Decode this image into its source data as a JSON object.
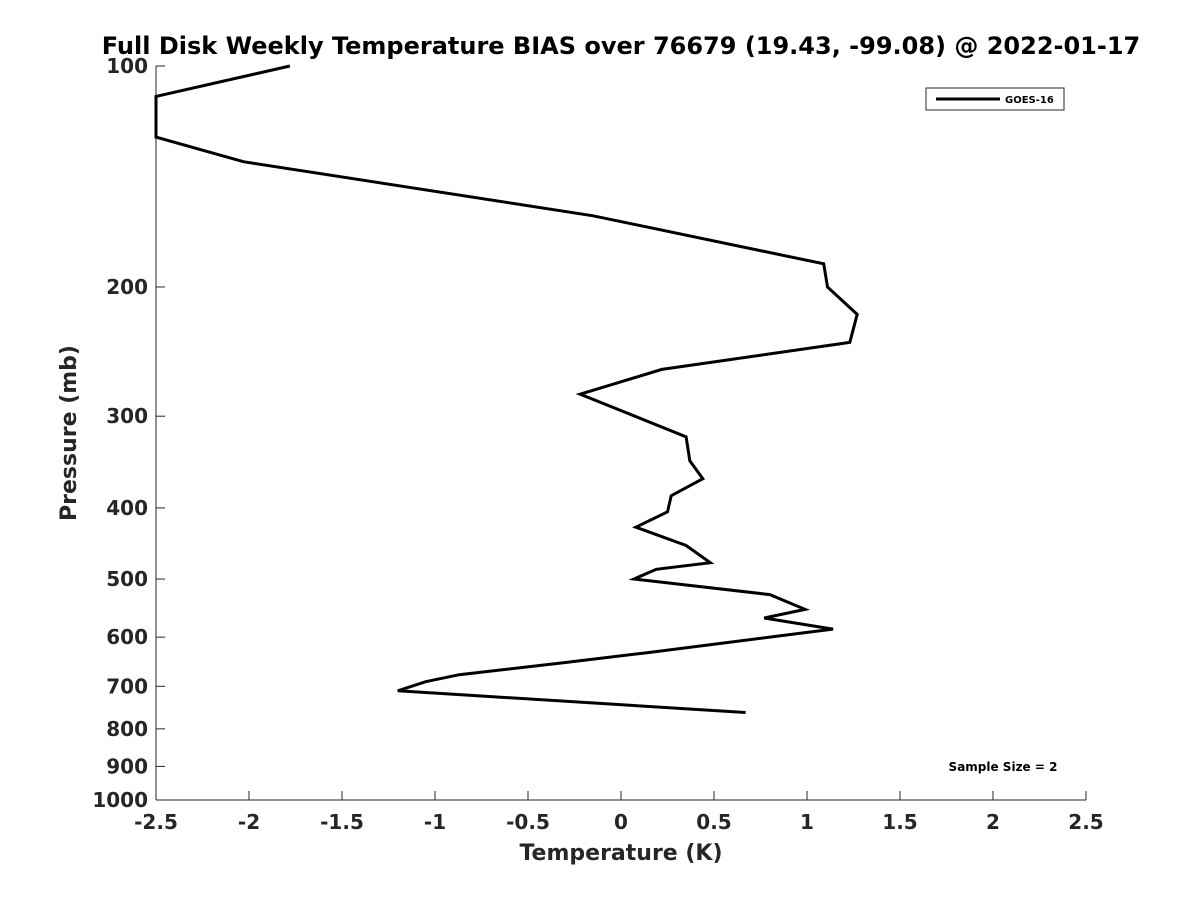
{
  "chart_data": {
    "type": "line",
    "title": "Full Disk Weekly Temperature BIAS over 76679 (19.43, -99.08) @ 2022-01-17",
    "xlabel": "Temperature (K)",
    "ylabel": "Pressure (mb)",
    "xlim": [
      -2.5,
      2.5
    ],
    "ylim": [
      100,
      1000
    ],
    "y_scale": "log",
    "y_reversed": true,
    "grid": false,
    "legend_position": "top-right",
    "x_ticks": [
      -2.5,
      -2,
      -1.5,
      -1,
      -0.5,
      0,
      0.5,
      1,
      1.5,
      2,
      2.5
    ],
    "x_tick_labels": [
      "-2.5",
      "-2",
      "-1.5",
      "-1",
      "-0.5",
      "0",
      "0.5",
      "1",
      "1.5",
      "2",
      "2.5"
    ],
    "y_ticks": [
      100,
      200,
      300,
      400,
      500,
      600,
      700,
      800,
      900,
      1000
    ],
    "y_tick_labels": [
      "100",
      "200",
      "300",
      "400",
      "500",
      "600",
      "700",
      "800",
      "900",
      "1000"
    ],
    "series": [
      {
        "name": "GOES-16",
        "color": "#000000",
        "x": [
          -1.78,
          -2.5,
          -2.5,
          -2.03,
          -0.15,
          1.09,
          1.11,
          1.27,
          1.23,
          0.22,
          -0.22,
          0.35,
          0.37,
          0.44,
          0.27,
          0.25,
          0.08,
          0.35,
          0.48,
          0.19,
          0.07,
          0.8,
          0.99,
          0.77,
          1.14,
          0.14,
          -0.31,
          -0.87,
          -1.05,
          -1.2,
          0.67
        ],
        "y": [
          100,
          110,
          125,
          135,
          160,
          186,
          200,
          218,
          238,
          259,
          280,
          320,
          345,
          365,
          385,
          405,
          425,
          450,
          475,
          485,
          500,
          525,
          550,
          565,
          585,
          630,
          650,
          675,
          690,
          710,
          760
        ]
      }
    ],
    "annotation": "Sample Size = 2"
  }
}
